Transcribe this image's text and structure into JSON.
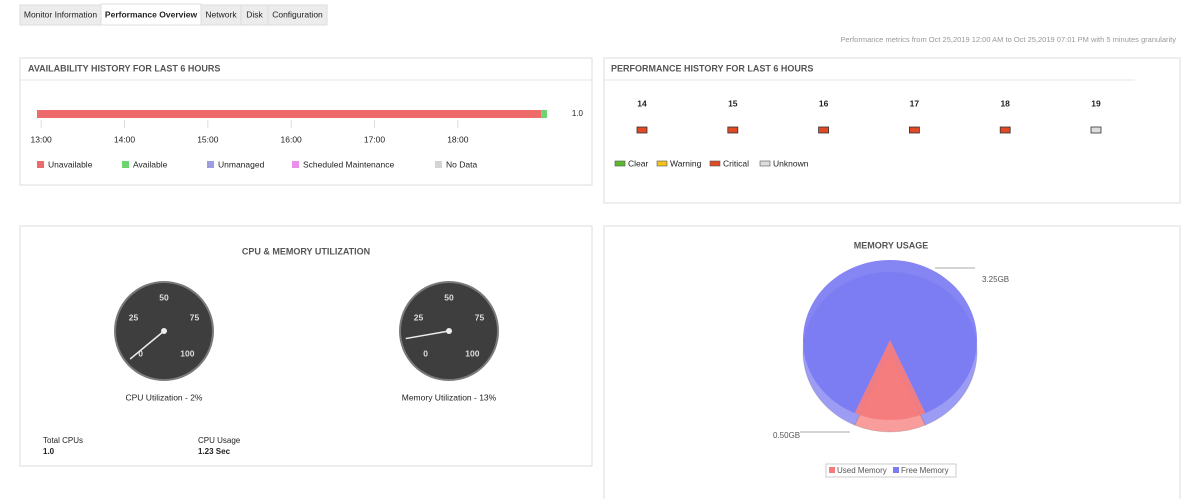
{
  "tabs": [
    "Monitor Information",
    "Performance Overview",
    "Network",
    "Disk",
    "Configuration"
  ],
  "active_tab": 1,
  "note": "Performance metrics from Oct 25,2019 12:00 AM to Oct 25,2019 07:01 PM with 5 minutes granularity",
  "cpu_memory_panel": {
    "title": "CPU & MEMORY UTILIZATION",
    "stats": [
      {
        "label": "Total CPUs",
        "value": "1.0"
      },
      {
        "label": "CPU Usage",
        "value": "1.23 Sec"
      }
    ]
  },
  "chart_data": [
    {
      "type": "timeline",
      "title": "AVAILABILITY HISTORY FOR LAST 6 HOURS",
      "row_label": "1.0",
      "xlim": [
        12.95,
        19.07
      ],
      "xticks": [
        {
          "value": 13,
          "label": "13:00"
        },
        {
          "value": 14,
          "label": "14:00"
        },
        {
          "value": 15,
          "label": "15:00"
        },
        {
          "value": 16,
          "label": "16:00"
        },
        {
          "value": 17,
          "label": "17:00"
        },
        {
          "value": 18,
          "label": "18:00"
        }
      ],
      "series": [
        {
          "name": "Unavailable",
          "color": "#ee6b6b",
          "values": [
            [
              12.95,
              19.0
            ]
          ]
        },
        {
          "name": "Available",
          "color": "#6fd36f",
          "values": [
            [
              19.0,
              19.07
            ]
          ]
        },
        {
          "name": "Unmanaged",
          "color": "#9d9de0",
          "values": []
        },
        {
          "name": "Scheduled Maintenance",
          "color": "#ea8fea",
          "values": []
        },
        {
          "name": "No Data",
          "color": "#d4d4d4",
          "values": []
        }
      ]
    },
    {
      "type": "status",
      "title": "PERFORMANCE HISTORY FOR LAST 6 HOURS",
      "categories": [
        "14",
        "15",
        "16",
        "17",
        "18",
        "19"
      ],
      "status": [
        "Critical",
        "Critical",
        "Critical",
        "Critical",
        "Critical",
        "Unknown"
      ],
      "series": [
        {
          "name": "Clear",
          "color": "#5cb82e"
        },
        {
          "name": "Warning",
          "color": "#f2c31a"
        },
        {
          "name": "Critical",
          "color": "#e04a26"
        },
        {
          "name": "Unknown",
          "color": "#dddddd"
        }
      ]
    },
    {
      "type": "gauge",
      "label": "CPU Utilization - 2%",
      "value": 2,
      "ylim": [
        0,
        100
      ],
      "yticks": [
        0,
        25,
        50,
        75,
        100
      ]
    },
    {
      "type": "gauge",
      "label": "Memory Utilization - 13%",
      "value": 13,
      "ylim": [
        0,
        100
      ],
      "yticks": [
        0,
        25,
        50,
        75,
        100
      ]
    },
    {
      "type": "pie",
      "title": "MEMORY USAGE",
      "categories": [
        "Used Memory",
        "Free Memory"
      ],
      "values": [
        0.5,
        3.25
      ],
      "value_labels": [
        "0.50GB",
        "3.25GB"
      ],
      "colors": [
        "#f57b7b",
        "#7b7bf2"
      ]
    }
  ]
}
